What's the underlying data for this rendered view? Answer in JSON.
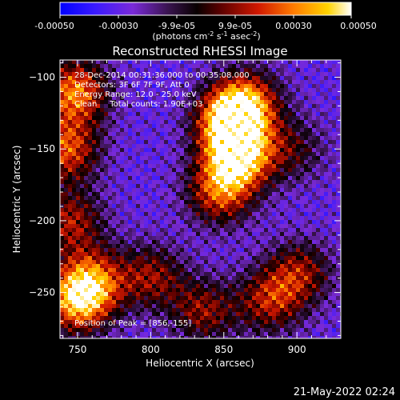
{
  "colorbar": {
    "ticks": [
      "-0.00050",
      "-0.00030",
      "-9.9e-05",
      "9.9e-05",
      "0.00030",
      "0.00050"
    ],
    "unit_main": "(photons cm",
    "unit_sup1": "-2",
    "unit_s": " s",
    "unit_sup2": "-1",
    "unit_asec": " asec",
    "unit_sup3": "-2",
    "unit_close": ")",
    "range": [
      -0.0005,
      0.0005
    ]
  },
  "plot": {
    "title": "Reconstructed RHESSI Image",
    "annotation_lines": [
      "28-Dec-2014 00:31:36.000 to 00:35:08.000",
      "Detectors: 3F 6F 7F 9F, Att 0",
      "Energy Range: 12.0 - 25.0 keV",
      "Clean     Total counts: 1.90E+03"
    ],
    "peak_label": "Position of Peak = [856,-155]"
  },
  "chart_data": {
    "type": "heatmap",
    "title": "Reconstructed RHESSI Image",
    "xlabel": "Heliocentric X (arcsec)",
    "ylabel": "Heliocentric Y (arcsec)",
    "xlim": [
      738,
      930
    ],
    "ylim": [
      -282,
      -88
    ],
    "xticks": [
      750,
      800,
      850,
      900
    ],
    "yticks": [
      -100,
      -150,
      -200,
      -250
    ],
    "colormap": "RHESSI thermal (blue-purple-black-red-orange-yellow-white)",
    "color_range": [
      -0.0005,
      0.0005
    ],
    "peak_position": [
      856,
      -155
    ],
    "sources": [
      {
        "x": 858,
        "y": -155,
        "amplitude": 1.0
      },
      {
        "x": 852,
        "y": -130,
        "amplitude": 0.85
      },
      {
        "x": 864,
        "y": -118,
        "amplitude": 0.75
      },
      {
        "x": 846,
        "y": -180,
        "amplitude": 0.65
      },
      {
        "x": 748,
        "y": -110,
        "amplitude": 0.8
      },
      {
        "x": 742,
        "y": -150,
        "amplitude": 0.7
      },
      {
        "x": 745,
        "y": -200,
        "amplitude": 0.55
      },
      {
        "x": 750,
        "y": -255,
        "amplitude": 0.85
      },
      {
        "x": 760,
        "y": -240,
        "amplitude": 0.6
      },
      {
        "x": 800,
        "y": -238,
        "amplitude": 0.5
      },
      {
        "x": 835,
        "y": -262,
        "amplitude": 0.5
      },
      {
        "x": 880,
        "y": -255,
        "amplitude": 0.55
      },
      {
        "x": 900,
        "y": -235,
        "amplitude": 0.5
      },
      {
        "x": 895,
        "y": -150,
        "amplitude": 0.35
      }
    ]
  },
  "footer": {
    "timestamp": "21-May-2022 02:24"
  }
}
